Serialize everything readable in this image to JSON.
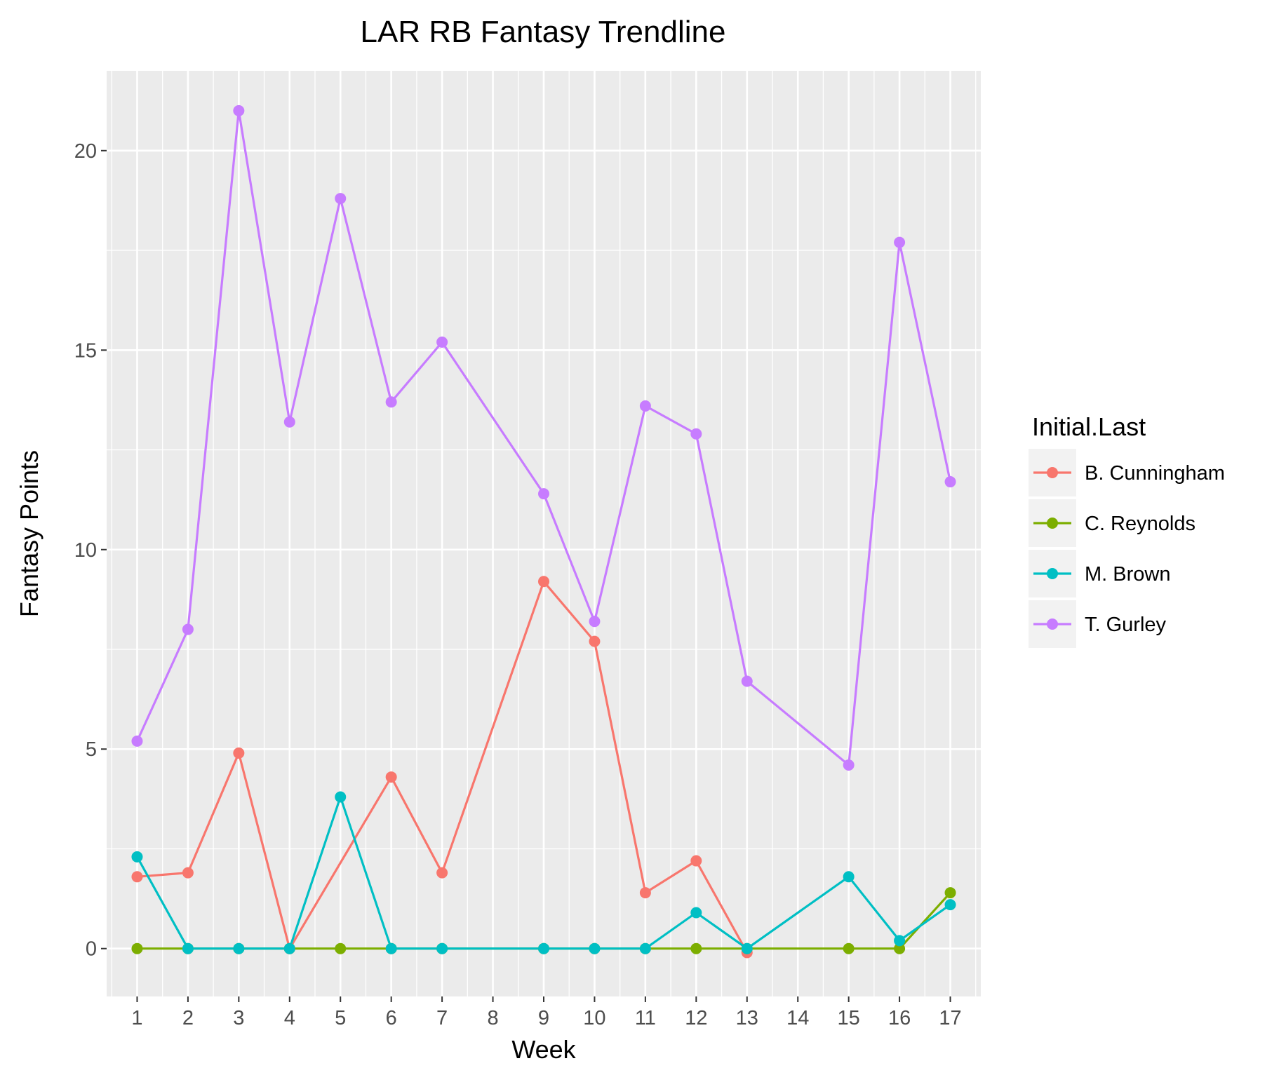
{
  "chart_data": {
    "type": "line",
    "title": "LAR RB Fantasy Trendline",
    "xlabel": "Week",
    "ylabel": "Fantasy Points",
    "categories": [
      "1",
      "2",
      "3",
      "4",
      "5",
      "6",
      "7",
      "8",
      "9",
      "10",
      "11",
      "12",
      "13",
      "14",
      "15",
      "16",
      "17"
    ],
    "ylim": [
      -1.2,
      22.0
    ],
    "yticks": [
      0,
      5,
      10,
      15,
      20
    ],
    "grid": true,
    "legend": {
      "title": "Initial.Last",
      "placement": "right"
    },
    "series": [
      {
        "name": "B. Cunningham",
        "color": "#F8766D",
        "points": [
          {
            "x": "1",
            "y": 1.8
          },
          {
            "x": "2",
            "y": 1.9
          },
          {
            "x": "3",
            "y": 4.9
          },
          {
            "x": "4",
            "y": 0.0
          },
          {
            "x": "6",
            "y": 4.3
          },
          {
            "x": "7",
            "y": 1.9
          },
          {
            "x": "9",
            "y": 9.2
          },
          {
            "x": "10",
            "y": 7.7
          },
          {
            "x": "11",
            "y": 1.4
          },
          {
            "x": "12",
            "y": 2.2
          },
          {
            "x": "13",
            "y": -0.1
          }
        ]
      },
      {
        "name": "C. Reynolds",
        "color": "#7CAE00",
        "points": [
          {
            "x": "1",
            "y": 0.0
          },
          {
            "x": "2",
            "y": 0.0
          },
          {
            "x": "3",
            "y": 0.0
          },
          {
            "x": "4",
            "y": 0.0
          },
          {
            "x": "5",
            "y": 0.0
          },
          {
            "x": "6",
            "y": 0.0
          },
          {
            "x": "7",
            "y": 0.0
          },
          {
            "x": "9",
            "y": 0.0
          },
          {
            "x": "10",
            "y": 0.0
          },
          {
            "x": "11",
            "y": 0.0
          },
          {
            "x": "12",
            "y": 0.0
          },
          {
            "x": "13",
            "y": 0.0
          },
          {
            "x": "15",
            "y": 0.0
          },
          {
            "x": "16",
            "y": 0.0
          },
          {
            "x": "17",
            "y": 1.4
          }
        ]
      },
      {
        "name": "M. Brown",
        "color": "#00BFC4",
        "points": [
          {
            "x": "1",
            "y": 2.3
          },
          {
            "x": "2",
            "y": 0.0
          },
          {
            "x": "3",
            "y": 0.0
          },
          {
            "x": "4",
            "y": 0.0
          },
          {
            "x": "5",
            "y": 3.8
          },
          {
            "x": "6",
            "y": 0.0
          },
          {
            "x": "7",
            "y": 0.0
          },
          {
            "x": "9",
            "y": 0.0
          },
          {
            "x": "10",
            "y": 0.0
          },
          {
            "x": "11",
            "y": 0.0
          },
          {
            "x": "12",
            "y": 0.9
          },
          {
            "x": "13",
            "y": 0.0
          },
          {
            "x": "15",
            "y": 1.8
          },
          {
            "x": "16",
            "y": 0.2
          },
          {
            "x": "17",
            "y": 1.1
          }
        ]
      },
      {
        "name": "T. Gurley",
        "color": "#C77CFF",
        "points": [
          {
            "x": "1",
            "y": 5.2
          },
          {
            "x": "2",
            "y": 8.0
          },
          {
            "x": "3",
            "y": 21.0
          },
          {
            "x": "4",
            "y": 13.2
          },
          {
            "x": "5",
            "y": 18.8
          },
          {
            "x": "6",
            "y": 13.7
          },
          {
            "x": "7",
            "y": 15.2
          },
          {
            "x": "9",
            "y": 11.4
          },
          {
            "x": "10",
            "y": 8.2
          },
          {
            "x": "11",
            "y": 13.6
          },
          {
            "x": "12",
            "y": 12.9
          },
          {
            "x": "13",
            "y": 6.7
          },
          {
            "x": "15",
            "y": 4.6
          },
          {
            "x": "16",
            "y": 17.7
          },
          {
            "x": "17",
            "y": 11.7
          }
        ]
      }
    ]
  }
}
